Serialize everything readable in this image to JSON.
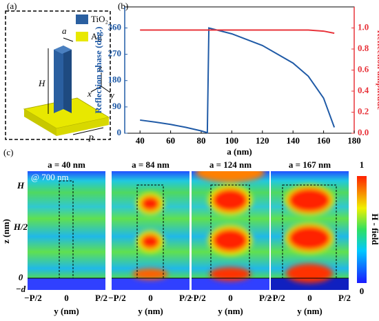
{
  "panel_labels": [
    "(a)",
    "(b)",
    "(c)"
  ],
  "diagram": {
    "legend": [
      "TiO₂",
      "Ag"
    ],
    "labels": {
      "a": "a",
      "H": "H",
      "P": "P",
      "x": "x",
      "y": "y",
      "z": "z"
    }
  },
  "chart_data": {
    "type": "line",
    "x": [
      40,
      50,
      60,
      70,
      80,
      84,
      85,
      100,
      120,
      140,
      150,
      160,
      167
    ],
    "series": [
      {
        "name": "Reflection phase (deg.)",
        "color": "#1f5aa6",
        "values": [
          45,
          38,
          30,
          20,
          8,
          2,
          360,
          340,
          300,
          240,
          195,
          120,
          20
        ]
      },
      {
        "name": "Reflection amplitude",
        "color": "#e8333a",
        "axis": "y2",
        "values": [
          0.98,
          0.98,
          0.98,
          0.98,
          0.98,
          0.98,
          0.98,
          0.98,
          0.98,
          0.98,
          0.98,
          0.97,
          0.95
        ]
      }
    ],
    "xlabel": "a (nm)",
    "xlim": [
      30,
      180
    ],
    "xticks": [
      40,
      60,
      80,
      100,
      120,
      140,
      160,
      180
    ],
    "ylim": [
      0,
      432
    ],
    "yticks": [
      0,
      90,
      180,
      270,
      360
    ],
    "y2lim": [
      0,
      1.2
    ],
    "y2ticks": [
      {
        "value": 0,
        "label": "0.0"
      },
      0.2,
      0.4,
      0.6,
      0.8,
      {
        "value": 1,
        "label": "1.0"
      }
    ]
  },
  "field_maps": {
    "titles": [
      "a = 40 nm",
      "a = 84 nm",
      "a = 124 nm",
      "a = 167 nm"
    ],
    "annotation": "@ 700 nm",
    "z_label": "z (nm)",
    "z_ticks": [
      "H",
      "H/2",
      "0",
      "−d"
    ],
    "y_label": "y (nm)",
    "y_ticks": [
      "−P/2",
      "0",
      "P/2"
    ],
    "colorbar": {
      "label": "H - field",
      "max": "1",
      "min": "0"
    }
  }
}
